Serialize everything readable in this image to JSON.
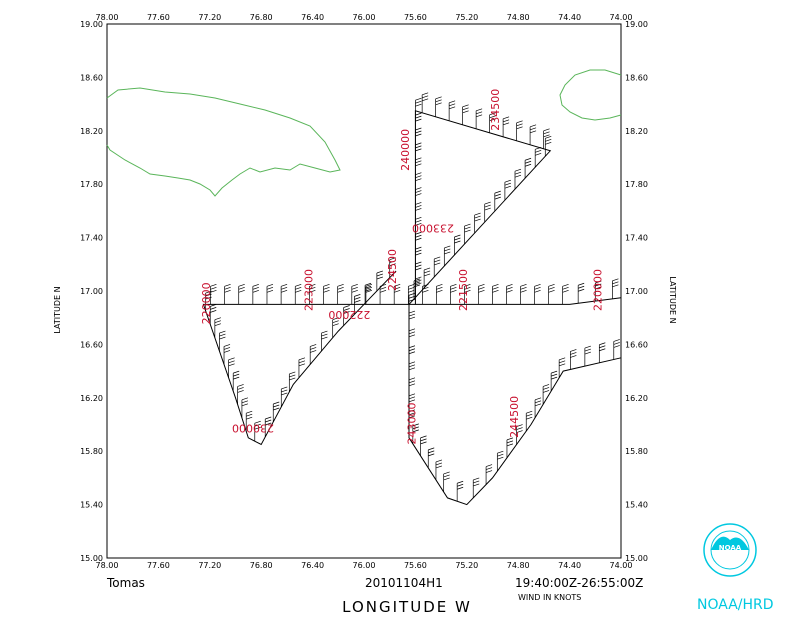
{
  "chart_data": {
    "type": "line",
    "title": "",
    "xlabel": "LONGITUDE W",
    "ylabel_left": "LATITUDE N",
    "ylabel_right": "LATITUDE N",
    "xlim": [
      78.0,
      74.0
    ],
    "ylim": [
      15.0,
      19.0
    ],
    "x_ticks": [
      "78.00",
      "77.60",
      "77.20",
      "76.80",
      "76.40",
      "76.00",
      "75.60",
      "75.20",
      "74.80",
      "74.40",
      "74.00"
    ],
    "y_ticks": [
      "15.00",
      "15.40",
      "15.80",
      "16.20",
      "16.60",
      "17.00",
      "17.40",
      "17.80",
      "18.20",
      "18.60",
      "19.00"
    ],
    "flight_track": [
      [
        74.0,
        16.95
      ],
      [
        74.4,
        16.9
      ],
      [
        75.6,
        16.9
      ],
      [
        75.6,
        18.35
      ],
      [
        74.55,
        18.05
      ],
      [
        75.65,
        16.9
      ],
      [
        75.65,
        16.5
      ],
      [
        75.65,
        15.9
      ],
      [
        75.35,
        15.45
      ],
      [
        75.2,
        15.4
      ],
      [
        75.0,
        15.6
      ],
      [
        74.7,
        16.0
      ],
      [
        74.45,
        16.4
      ],
      [
        74.0,
        16.5
      ]
    ],
    "flight_track_2": [
      [
        75.75,
        17.15
      ],
      [
        75.95,
        16.95
      ],
      [
        76.2,
        16.7
      ],
      [
        76.55,
        16.3
      ],
      [
        76.8,
        15.85
      ],
      [
        76.9,
        15.9
      ],
      [
        77.0,
        16.2
      ],
      [
        77.25,
        16.9
      ],
      [
        75.6,
        16.9
      ]
    ],
    "time_labels": [
      "234500",
      "240000",
      "233000",
      "224500",
      "221500",
      "220000",
      "223000",
      "222000",
      "220000",
      "243000",
      "244500",
      "230000"
    ],
    "annotations": {
      "storm": "Tomas",
      "flight_id": "20101104H1",
      "time_range": "19:40:00Z-26:55:00Z",
      "units": "WIND IN KNOTS"
    },
    "grid": false,
    "legend": "none"
  },
  "logo": {
    "org": "NOAA/HRD",
    "seal_text": "NOAA"
  },
  "colors": {
    "coast": "#5ab55a",
    "track": "#000000",
    "time_label": "#c8102e",
    "logo": "#00c8e0"
  }
}
